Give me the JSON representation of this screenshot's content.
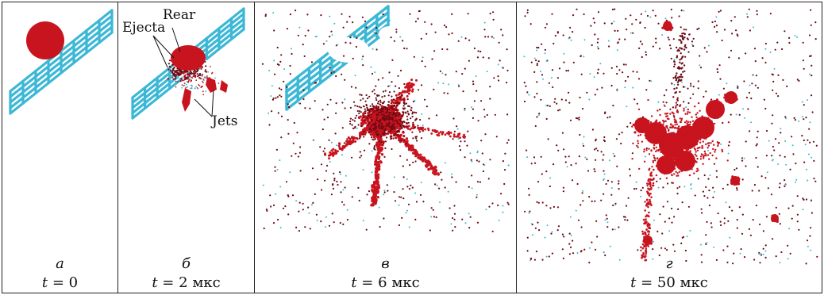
{
  "panels": [
    {
      "id": "a",
      "letter": "а",
      "var": "t",
      "eq": "=",
      "value": "0",
      "unit": ""
    },
    {
      "id": "b",
      "letter": "б",
      "var": "t",
      "eq": "=",
      "value": "2",
      "unit": "мкс",
      "labels": {
        "rear": "Rear",
        "ejecta": "Ejecta",
        "jets": "Jets"
      }
    },
    {
      "id": "c",
      "letter": "в",
      "var": "t",
      "eq": "=",
      "value": "6",
      "unit": "мкс"
    },
    {
      "id": "d",
      "letter": "г",
      "var": "t",
      "eq": "=",
      "value": "50",
      "unit": "мкс"
    }
  ],
  "colors": {
    "projectile": "#c8141e",
    "debris_dark": "#6b0a14",
    "mesh": "#3cb8d6",
    "frame": "#222222"
  }
}
